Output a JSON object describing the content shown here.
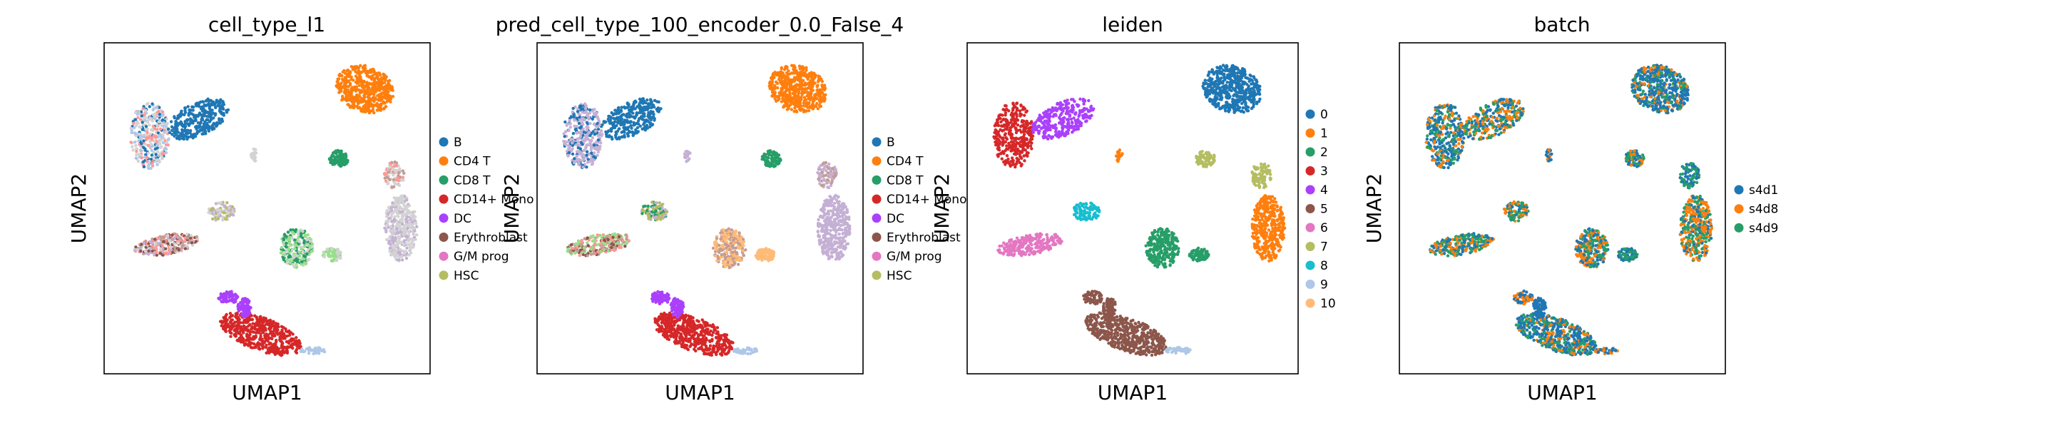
{
  "palette": {
    "c0": "#1f77b4",
    "c1": "#ff7f0e",
    "c2": "#279e68",
    "c3": "#d62728",
    "c4": "#aa40fc",
    "c5": "#8c564b",
    "c6": "#e377c2",
    "c7": "#b5bd61",
    "c8": "#17becf",
    "c9": "#aec7e8",
    "c10": "#ffbb78",
    "gray": "#d3d3d3",
    "lightgreen": "#98df8a",
    "lightred": "#ff9896",
    "lavender": "#c5b0d5",
    "tan": "#c49c94",
    "pink": "#f7b6d2"
  },
  "chart_data": [
    {
      "type": "scatter",
      "title": "cell_type_l1",
      "xlabel": "UMAP1",
      "ylabel": "UMAP2",
      "grid": false,
      "legend_placement": "right",
      "legend": [
        {
          "label": "B",
          "color": "#1f77b4"
        },
        {
          "label": "CD4 T",
          "color": "#ff7f0e"
        },
        {
          "label": "CD8 T",
          "color": "#279e68"
        },
        {
          "label": "CD14+ Mono",
          "color": "#d62728"
        },
        {
          "label": "DC",
          "color": "#aa40fc"
        },
        {
          "label": "Erythroblast",
          "color": "#8c564b"
        },
        {
          "label": "G/M prog",
          "color": "#e377c2"
        },
        {
          "label": "HSC",
          "color": "#b5bd61"
        }
      ],
      "cluster_colors": {
        "blob_1": [
          "#ff7f0e"
        ],
        "blob_2": [
          "#d3d3d3",
          "#d3d3d3",
          "#1f77b4",
          "#aec7e8",
          "#ff9896"
        ],
        "blob_3": [
          "#1f77b4"
        ],
        "blob_4": [
          "#279e68"
        ],
        "blob_5": [
          "#d3d3d3",
          "#c49c94",
          "#ff9896"
        ],
        "blob_6": [
          "#d3d3d3",
          "#d3d3d3",
          "#c5b0d5"
        ],
        "blob_7": [
          "#b5bd61",
          "#c5b0d5",
          "#d3d3d3"
        ],
        "blob_8": [
          "#ff9896",
          "#c49c94",
          "#8c564b",
          "#c5b0d5",
          "#d3d3d3"
        ],
        "blob_9": [
          "#98df8a",
          "#279e68",
          "#d3d3d3"
        ],
        "blob_10": [
          "#d3d3d3",
          "#98df8a"
        ],
        "blob_11": [
          "#aa40fc"
        ],
        "blob_12": [
          "#d62728"
        ],
        "blob_13": [
          "#aec7e8"
        ],
        "blob_14": [
          "#aa40fc"
        ],
        "blob_15": [
          "#d3d3d3"
        ]
      }
    },
    {
      "type": "scatter",
      "title": "pred_cell_type_100_encoder_0.0_False_4",
      "xlabel": "UMAP1",
      "ylabel": "UMAP2",
      "grid": false,
      "legend_placement": "right",
      "legend": [
        {
          "label": "B",
          "color": "#1f77b4"
        },
        {
          "label": "CD4 T",
          "color": "#ff7f0e"
        },
        {
          "label": "CD8 T",
          "color": "#279e68"
        },
        {
          "label": "CD14+ Mono",
          "color": "#d62728"
        },
        {
          "label": "DC",
          "color": "#aa40fc"
        },
        {
          "label": "Erythroblast",
          "color": "#8c564b"
        },
        {
          "label": "G/M prog",
          "color": "#e377c2"
        },
        {
          "label": "HSC",
          "color": "#b5bd61"
        }
      ],
      "cluster_colors": {
        "blob_1": [
          "#ff7f0e"
        ],
        "blob_2": [
          "#c5b0d5",
          "#c5b0d5",
          "#1f77b4"
        ],
        "blob_3": [
          "#1f77b4"
        ],
        "blob_4": [
          "#279e68"
        ],
        "blob_5": [
          "#c5b0d5",
          "#c49c94"
        ],
        "blob_6": [
          "#c5b0d5"
        ],
        "blob_7": [
          "#b5bd61",
          "#279e68",
          "#c5b0d5"
        ],
        "blob_8": [
          "#ff9896",
          "#c49c94",
          "#8c564b",
          "#98df8a"
        ],
        "blob_9": [
          "#ffbb78",
          "#c49c94"
        ],
        "blob_10": [
          "#ffbb78"
        ],
        "blob_11": [
          "#aa40fc"
        ],
        "blob_12": [
          "#d62728"
        ],
        "blob_13": [
          "#aec7e8"
        ],
        "blob_14": [
          "#aa40fc"
        ],
        "blob_15": [
          "#c5b0d5"
        ]
      }
    },
    {
      "type": "scatter",
      "title": "leiden",
      "xlabel": "UMAP1",
      "ylabel": "UMAP2",
      "grid": false,
      "legend_placement": "right",
      "legend": [
        {
          "label": "0",
          "color": "#1f77b4"
        },
        {
          "label": "1",
          "color": "#ff7f0e"
        },
        {
          "label": "2",
          "color": "#279e68"
        },
        {
          "label": "3",
          "color": "#d62728"
        },
        {
          "label": "4",
          "color": "#aa40fc"
        },
        {
          "label": "5",
          "color": "#8c564b"
        },
        {
          "label": "6",
          "color": "#e377c2"
        },
        {
          "label": "7",
          "color": "#b5bd61"
        },
        {
          "label": "8",
          "color": "#17becf"
        },
        {
          "label": "9",
          "color": "#aec7e8"
        },
        {
          "label": "10",
          "color": "#ffbb78"
        }
      ],
      "cluster_colors": {
        "blob_1": [
          "#1f77b4"
        ],
        "blob_2": [
          "#d62728"
        ],
        "blob_3": [
          "#aa40fc"
        ],
        "blob_4": [
          "#b5bd61"
        ],
        "blob_5": [
          "#b5bd61"
        ],
        "blob_6": [
          "#ff7f0e"
        ],
        "blob_7": [
          "#17becf"
        ],
        "blob_8": [
          "#e377c2"
        ],
        "blob_9": [
          "#279e68"
        ],
        "blob_10": [
          "#279e68"
        ],
        "blob_11": [
          "#8c564b"
        ],
        "blob_12": [
          "#8c564b"
        ],
        "blob_13": [
          "#aec7e8"
        ],
        "blob_14": [
          "#8c564b"
        ],
        "blob_15": [
          "#ff7f0e"
        ]
      }
    },
    {
      "type": "scatter",
      "title": "batch",
      "xlabel": "UMAP1",
      "ylabel": "UMAP2",
      "grid": false,
      "legend_placement": "right",
      "legend": [
        {
          "label": "s4d1",
          "color": "#1f77b4"
        },
        {
          "label": "s4d8",
          "color": "#ff7f0e"
        },
        {
          "label": "s4d9",
          "color": "#279e68"
        }
      ],
      "cluster_colors": {
        "blob_1": [
          "#1f77b4",
          "#1f77b4",
          "#1f77b4",
          "#ff7f0e",
          "#279e68"
        ],
        "blob_2": [
          "#1f77b4",
          "#1f77b4",
          "#279e68",
          "#ff7f0e"
        ],
        "blob_3": [
          "#1f77b4",
          "#279e68",
          "#ff7f0e"
        ],
        "blob_4": [
          "#279e68",
          "#1f77b4",
          "#ff7f0e"
        ],
        "blob_5": [
          "#1f77b4",
          "#279e68"
        ],
        "blob_6": [
          "#1f77b4",
          "#279e68",
          "#ff7f0e",
          "#ff7f0e"
        ],
        "blob_7": [
          "#1f77b4",
          "#279e68",
          "#ff7f0e"
        ],
        "blob_8": [
          "#1f77b4",
          "#279e68",
          "#ff7f0e"
        ],
        "blob_9": [
          "#1f77b4",
          "#279e68",
          "#ff7f0e"
        ],
        "blob_10": [
          "#279e68",
          "#1f77b4"
        ],
        "blob_11": [
          "#1f77b4",
          "#ff7f0e"
        ],
        "blob_12": [
          "#1f77b4",
          "#1f77b4",
          "#ff7f0e",
          "#279e68"
        ],
        "blob_13": [
          "#1f77b4",
          "#ff7f0e"
        ],
        "blob_14": [
          "#1f77b4"
        ],
        "blob_15": [
          "#1f77b4",
          "#ff7f0e"
        ]
      }
    }
  ]
}
